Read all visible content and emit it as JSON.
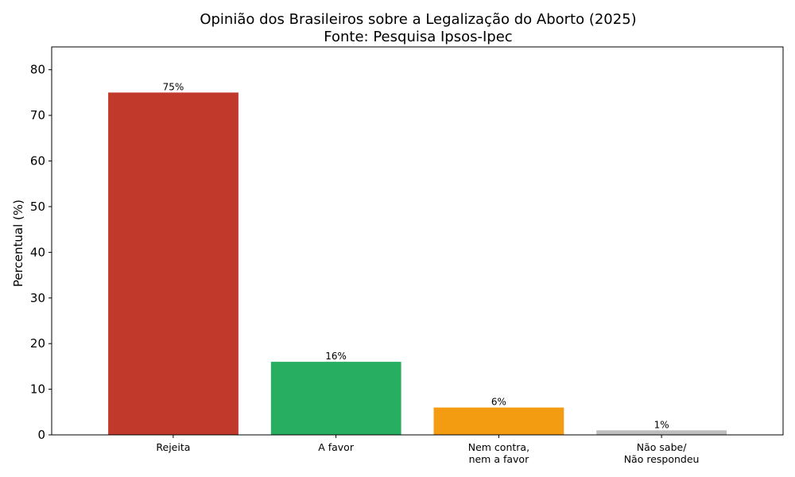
{
  "chart_data": {
    "type": "bar",
    "title": "Opinião dos Brasileiros sobre a Legalização do Aborto (2025)",
    "subtitle": "Fonte: Pesquisa Ipsos-Ipec",
    "xlabel": "",
    "ylabel": "Percentual (%)",
    "ylim": [
      0,
      85
    ],
    "yticks": [
      0,
      10,
      20,
      30,
      40,
      50,
      60,
      70,
      80
    ],
    "grid": false,
    "categories": [
      [
        "Rejeita"
      ],
      [
        "A favor"
      ],
      [
        "Nem contra,",
        "nem a favor"
      ],
      [
        "Não sabe/",
        "Não respondeu"
      ]
    ],
    "values": [
      75,
      16,
      6,
      1
    ],
    "data_labels": [
      "75%",
      "16%",
      "6%",
      "1%"
    ],
    "colors": [
      "#c0392b",
      "#27ae60",
      "#f39c12",
      "#bdbdbd"
    ]
  }
}
